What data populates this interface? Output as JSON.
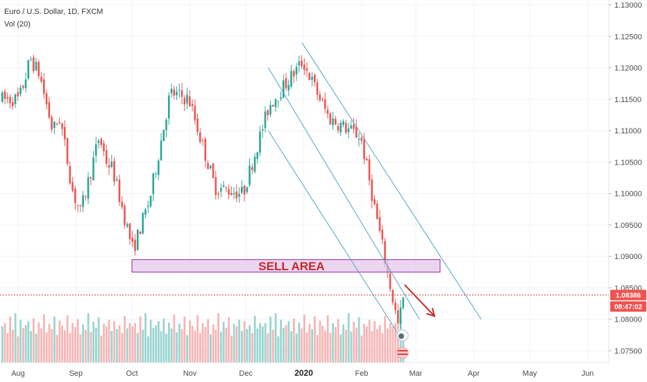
{
  "header": {
    "title": "Euro / U.S. Dollar, 1D, FXCM",
    "volume_label": "Vol (20)"
  },
  "annotation": {
    "sell_area_label": "SELL AREA",
    "sell_area_range": [
      1.0875,
      1.0895
    ]
  },
  "price_tag": {
    "value": "1.08386",
    "countdown": "08:47:02"
  },
  "chart_data": {
    "type": "candlestick",
    "title": "Euro / U.S. Dollar, 1D, FXCM",
    "y_ticks": [
      "1.13000",
      "1.12500",
      "1.12000",
      "1.11500",
      "1.11000",
      "1.10500",
      "1.10000",
      "1.09500",
      "1.09000",
      "1.08500",
      "1.08000",
      "1.07500"
    ],
    "x_ticks": [
      "Aug",
      "Sep",
      "Oct",
      "Nov",
      "Dec",
      "2020",
      "Feb",
      "Mar",
      "Apr",
      "May",
      "Jun"
    ],
    "ylim": [
      1.0735,
      1.1303
    ],
    "last_price": 1.08386,
    "price_path": [
      [
        "2019-08-01",
        1.115
      ],
      [
        "2019-08-05",
        1.119
      ],
      [
        "2019-08-07",
        1.1215
      ],
      [
        "2019-08-12",
        1.119
      ],
      [
        "2019-08-19",
        1.11
      ],
      [
        "2019-08-23",
        1.112
      ],
      [
        "2019-08-30",
        1.1
      ],
      [
        "2019-09-03",
        1.097
      ],
      [
        "2019-09-13",
        1.109
      ],
      [
        "2019-09-17",
        1.105
      ],
      [
        "2019-09-20",
        1.104
      ],
      [
        "2019-10-01",
        1.091
      ],
      [
        "2019-10-10",
        1.099
      ],
      [
        "2019-10-21",
        1.116
      ],
      [
        "2019-10-31",
        1.115
      ],
      [
        "2019-11-14",
        1.101
      ],
      [
        "2019-11-29",
        1.1
      ],
      [
        "2019-12-13",
        1.114
      ],
      [
        "2019-12-31",
        1.121
      ],
      [
        "2020-01-14",
        1.112
      ],
      [
        "2020-01-31",
        1.109
      ],
      [
        "2020-02-20",
        1.079
      ],
      [
        "2020-02-24",
        1.085
      ]
    ],
    "volume_levels": [
      0.4,
      0.45,
      0.3,
      0.55,
      0.35,
      0.6,
      0.25,
      0.5,
      0.38,
      0.42,
      0.48,
      0.33,
      0.52,
      0.29,
      0.46,
      0.37,
      0.58,
      0.31,
      0.44,
      0.36,
      0.55,
      0.27,
      0.49,
      0.41,
      0.34,
      0.57,
      0.3,
      0.45,
      0.39,
      0.51,
      0.28,
      0.43,
      0.35,
      0.6,
      0.32,
      0.47,
      0.38,
      0.54,
      0.26,
      0.44,
      0.4,
      0.5,
      0.33,
      0.48,
      0.36,
      0.42,
      0.3,
      0.56,
      0.37,
      0.45
    ],
    "channels": [
      {
        "from": [
          "2019-12-31",
          1.124
        ],
        "to": [
          "2020-04-05",
          1.08
        ]
      },
      {
        "from": [
          "2019-12-13",
          1.12
        ],
        "to": [
          "2020-03-03",
          1.08
        ]
      },
      {
        "from": [
          "2019-12-13",
          1.11
        ],
        "to": [
          "2020-02-21",
          1.0775
        ]
      }
    ],
    "arrow": {
      "from": [
        "2020-02-24",
        1.0855
      ],
      "to": [
        "2020-03-11",
        1.0805
      ]
    }
  }
}
